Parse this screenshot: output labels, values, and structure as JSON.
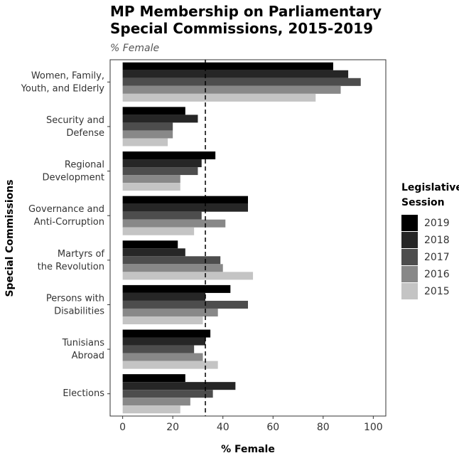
{
  "chart_data": {
    "type": "barh",
    "title": "MP Membership on Parliamentary\nSpecial Commissions, 2015-2019",
    "subtitle": "% Female",
    "x_label": "% Female",
    "y_label": "Special Commissions",
    "legend_title": "Legislative\nSession",
    "categories": [
      "Women, Family,\nYouth, and Elderly",
      "Security and\nDefense",
      "Regional\nDevelopment",
      "Governance and\nAnti-Corruption",
      "Martyrs of\nthe Revolution",
      "Persons with\nDisabilities",
      "Tunisians\nAbroad",
      "Elections"
    ],
    "series": [
      {
        "name": "2019",
        "color": "#000000",
        "values": [
          84,
          25,
          37,
          50,
          22,
          43,
          35,
          25
        ]
      },
      {
        "name": "2018",
        "color": "#262626",
        "values": [
          90,
          30,
          31.5,
          50,
          25,
          33,
          33,
          45
        ]
      },
      {
        "name": "2017",
        "color": "#4d4d4d",
        "values": [
          95,
          20,
          30,
          31.5,
          39,
          50,
          28.5,
          36
        ]
      },
      {
        "name": "2016",
        "color": "#888888",
        "values": [
          87,
          20,
          23,
          41,
          40,
          38,
          32,
          27
        ]
      },
      {
        "name": "2015",
        "color": "#c4c4c4",
        "values": [
          77,
          18,
          23,
          28.5,
          52,
          32,
          38,
          23
        ]
      }
    ],
    "reference_line": 33,
    "xlim": [
      -5,
      105
    ],
    "xticks": [
      0,
      20,
      40,
      60,
      80,
      100
    ],
    "legend_position": "right",
    "grid": false
  }
}
